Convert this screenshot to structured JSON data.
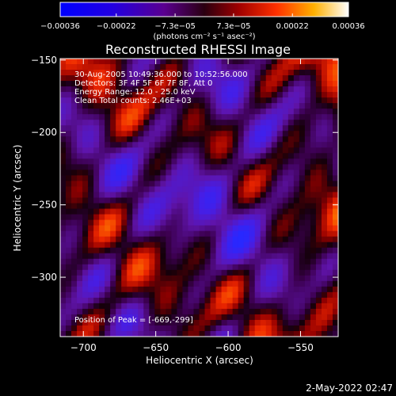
{
  "chart_data": {
    "type": "heatmap",
    "title": "Reconstructed RHESSI Image",
    "xlabel": "Heliocentric X (arcsec)",
    "ylabel": "Heliocentric Y (arcsec)",
    "xlim": [
      -716,
      -524
    ],
    "ylim": [
      -341,
      -149
    ],
    "x_ticks": [
      -700,
      -650,
      -600,
      -550
    ],
    "y_ticks": [
      -300,
      -250,
      -200,
      -150
    ],
    "colorbar": {
      "range": [
        -0.00036,
        0.00036
      ],
      "ticks": [
        {
          "value": -0.00036,
          "label": "-0.00036"
        },
        {
          "value": -0.00022,
          "label": "-0.00022"
        },
        {
          "value": -7.3e-05,
          "label": "-7.3e-05"
        },
        {
          "value": 7.3e-05,
          "label": "7.3e-05"
        },
        {
          "value": 0.00022,
          "label": "0.00022"
        },
        {
          "value": 0.00036,
          "label": "0.00036"
        }
      ],
      "unit_label": "(photons cm⁻² s⁻¹ asec⁻²)"
    },
    "annotations": [
      "30-Aug-2005 10:49:36.000 to 10:52:56.000",
      "Detectors: 3F 4F 5F 6F 7F 8F, Att 0",
      "Energy Range: 12.0 - 25.0 keV",
      "Clean     Total counts: 2.46E+03"
    ],
    "peak_label": "Position of Peak = [-669,-299]",
    "peak": [
      -669,
      -299
    ],
    "timestamp": "2-May-2022 02:47"
  }
}
